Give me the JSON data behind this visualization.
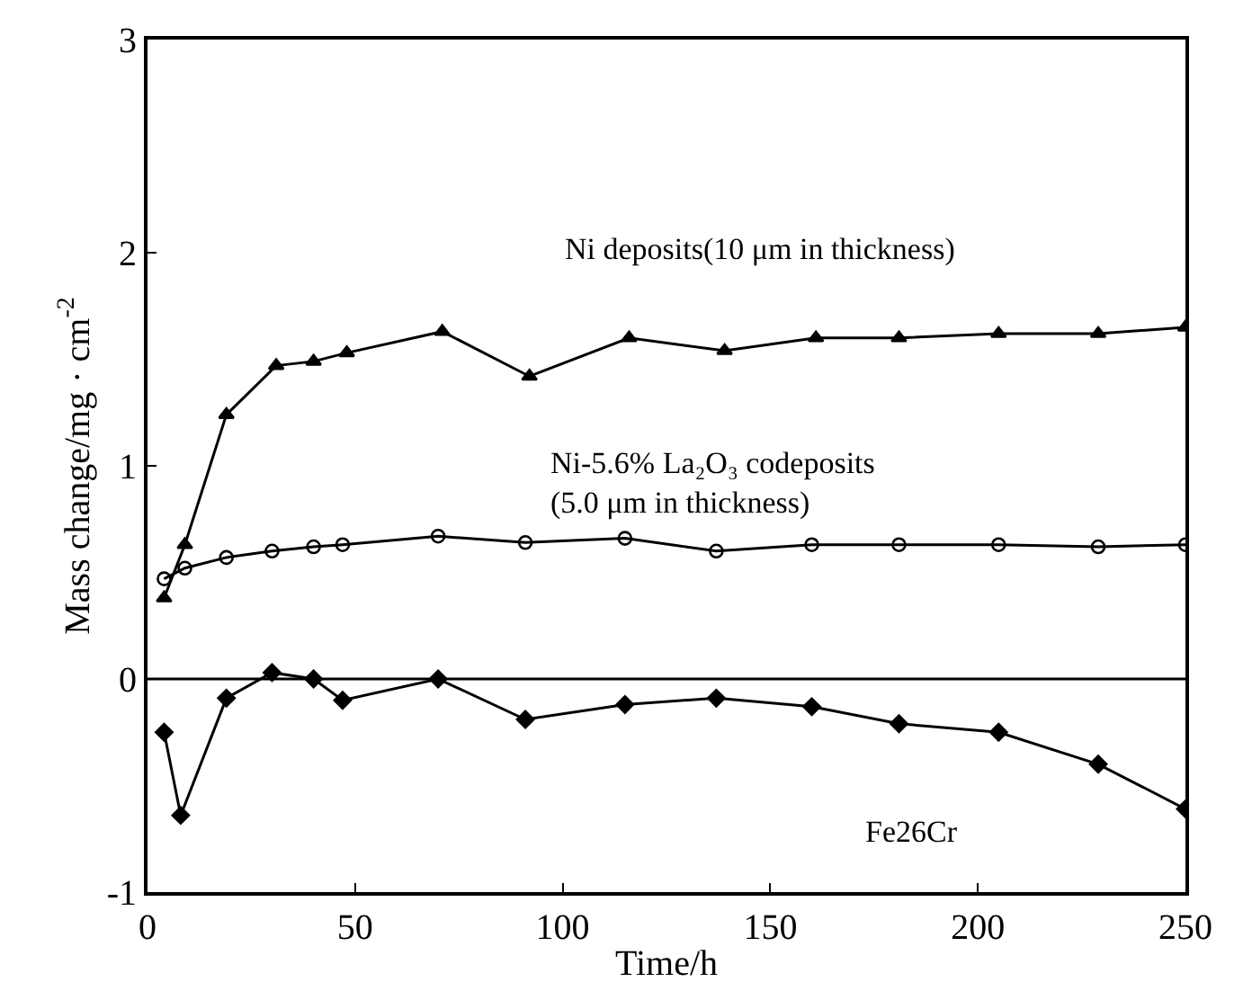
{
  "chart_data": {
    "type": "line",
    "xlabel": "Time/h",
    "ylabel": "Mass change/mg · cm$^{-2}$",
    "xlim": [
      0,
      250
    ],
    "ylim": [
      -1,
      3
    ],
    "xticks": [
      0,
      50,
      100,
      150,
      200,
      250
    ],
    "yticks": [
      -1,
      0,
      1,
      2,
      3
    ],
    "legend": false,
    "line_style": "solid",
    "ref_lines": [
      {
        "axis": "y",
        "value": 0,
        "color": "#000000",
        "line_style": "solid"
      }
    ],
    "series": [
      {
        "name": "Ni deposits(10 μm in thickness)",
        "color": "#000000",
        "marker": "triangle",
        "x": [
          4,
          9,
          19,
          31,
          40,
          48,
          71,
          92,
          116,
          139,
          161,
          181,
          205,
          229,
          250
        ],
        "values": [
          0.38,
          0.63,
          1.24,
          1.47,
          1.49,
          1.53,
          1.63,
          1.42,
          1.6,
          1.54,
          1.6,
          1.6,
          1.62,
          1.62,
          1.65
        ]
      },
      {
        "name": "Ni-5.6% La₂O₃ codeposits\n(5.0 μm in thickness)",
        "color": "#000000",
        "marker": "circle",
        "x": [
          4,
          9,
          19,
          30,
          40,
          47,
          70,
          91,
          115,
          137,
          160,
          181,
          205,
          229,
          250
        ],
        "values": [
          0.47,
          0.52,
          0.57,
          0.6,
          0.62,
          0.63,
          0.67,
          0.64,
          0.66,
          0.6,
          0.63,
          0.63,
          0.63,
          0.62,
          0.63
        ]
      },
      {
        "name": "Fe26Cr",
        "color": "#000000",
        "marker": "diamond",
        "x": [
          4,
          8,
          19,
          30,
          40,
          47,
          70,
          91,
          115,
          137,
          160,
          181,
          205,
          229,
          250
        ],
        "values": [
          -0.25,
          -0.64,
          -0.09,
          0.03,
          0.0,
          -0.1,
          0.0,
          -0.19,
          -0.12,
          -0.09,
          -0.13,
          -0.21,
          -0.25,
          -0.4,
          -0.61
        ]
      }
    ]
  }
}
